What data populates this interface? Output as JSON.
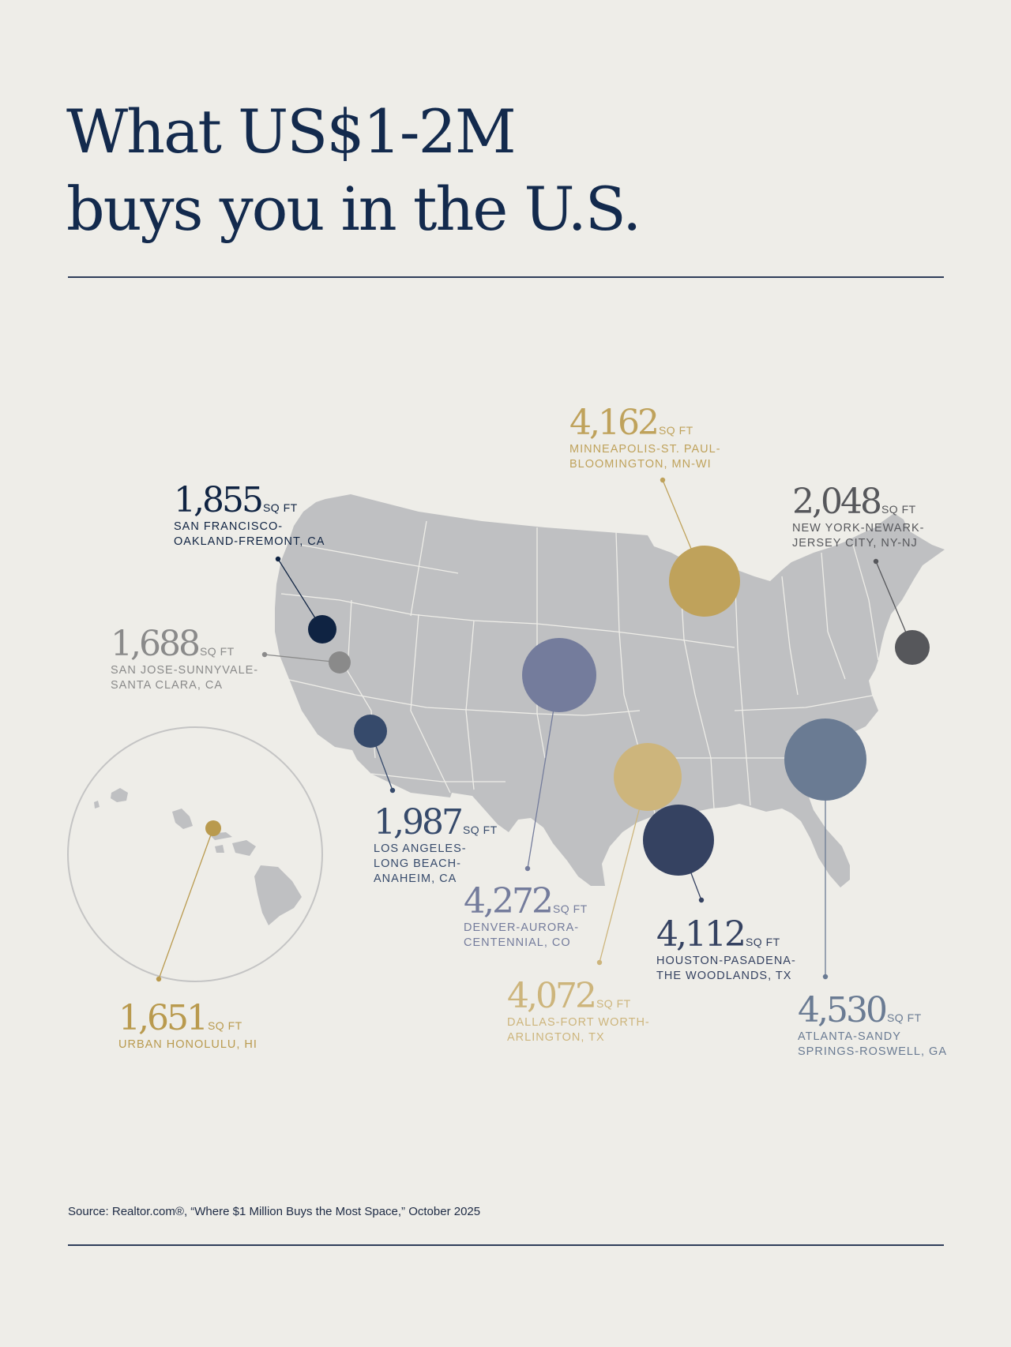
{
  "header": {
    "title_line1": "What US$1-2M",
    "title_line2": "buys you in the U.S."
  },
  "unit_label": "SQ FT",
  "colors": {
    "background": "#eeede8",
    "title": "#132a4d",
    "land": "#bfc0c2",
    "state_borders": "#eeede8",
    "inset_ring": "#c4c4c4"
  },
  "markers": [
    {
      "id": "san-francisco",
      "value": "1,855",
      "metro_line1": "SAN FRANCISCO-",
      "metro_line2": "OAKLAND-FREMONT, CA",
      "metro_line3": "",
      "color": "#0f2342",
      "size_sqft": 1855
    },
    {
      "id": "san-jose",
      "value": "1,688",
      "metro_line1": "SAN JOSE-SUNNYVALE-",
      "metro_line2": "SANTA CLARA, CA",
      "metro_line3": "",
      "color": "#8a8a8a",
      "size_sqft": 1688
    },
    {
      "id": "los-angeles",
      "value": "1,987",
      "metro_line1": "LOS ANGELES-",
      "metro_line2": "LONG BEACH-",
      "metro_line3": "ANAHEIM, CA",
      "color": "#364a6b",
      "size_sqft": 1987
    },
    {
      "id": "denver",
      "value": "4,272",
      "metro_line1": "DENVER-AURORA-",
      "metro_line2": "CENTENNIAL, CO",
      "metro_line3": "",
      "color": "#747c9c",
      "size_sqft": 4272
    },
    {
      "id": "minneapolis",
      "value": "4,162",
      "metro_line1": "MINNEAPOLIS-ST. PAUL-",
      "metro_line2": "BLOOMINGTON, MN-WI",
      "metro_line3": "",
      "color": "#bfa25b",
      "size_sqft": 4162
    },
    {
      "id": "new-york",
      "value": "2,048",
      "metro_line1": "NEW YORK-NEWARK-",
      "metro_line2": "JERSEY CITY, NY-NJ",
      "metro_line3": "",
      "color": "#56575b",
      "size_sqft": 2048
    },
    {
      "id": "dallas",
      "value": "4,072",
      "metro_line1": "DALLAS-FORT WORTH-",
      "metro_line2": "ARLINGTON, TX",
      "metro_line3": "",
      "color": "#cdb57c",
      "size_sqft": 4072
    },
    {
      "id": "houston",
      "value": "4,112",
      "metro_line1": "HOUSTON-PASADENA-",
      "metro_line2": "THE WOODLANDS, TX",
      "metro_line3": "",
      "color": "#354261",
      "size_sqft": 4112
    },
    {
      "id": "atlanta",
      "value": "4,530",
      "metro_line1": "ATLANTA-SANDY",
      "metro_line2": "SPRINGS-ROSWELL, GA",
      "metro_line3": "",
      "color": "#6a7b93",
      "size_sqft": 4530
    },
    {
      "id": "honolulu",
      "value": "1,651",
      "metro_line1": "URBAN HONOLULU, HI",
      "metro_line2": "",
      "metro_line3": "",
      "color": "#b99a4e",
      "size_sqft": 1651
    }
  ],
  "footer": {
    "source": "Source: Realtor.com®, “Where $1 Million Buys the Most Space,” October 2025"
  }
}
